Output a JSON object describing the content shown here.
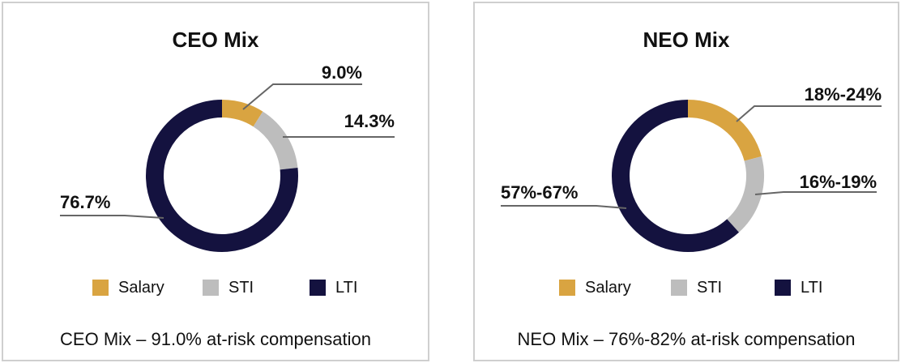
{
  "colors": {
    "Salary": "#D9A441",
    "STI": "#BDBDBD",
    "LTI": "#14123F",
    "leader": "#666666",
    "border": "#cfcfcf"
  },
  "legend": [
    "Salary",
    "STI",
    "LTI"
  ],
  "chart_data": [
    {
      "type": "pie",
      "variant": "donut",
      "title": "CEO Mix",
      "categories": [
        "Salary",
        "STI",
        "LTI"
      ],
      "values": [
        9.0,
        14.3,
        76.7
      ],
      "data_labels": [
        "9.0%",
        "14.3%",
        "76.7%"
      ],
      "caption": "CEO Mix – 91.0% at-risk compensation"
    },
    {
      "type": "pie",
      "variant": "donut",
      "title": "NEO Mix",
      "categories": [
        "Salary",
        "STI",
        "LTI"
      ],
      "values": [
        21,
        17.5,
        62
      ],
      "data_labels": [
        "18%-24%",
        "16%-19%",
        "57%-67%"
      ],
      "caption": "NEO Mix – 76%-82% at-risk compensation"
    }
  ]
}
